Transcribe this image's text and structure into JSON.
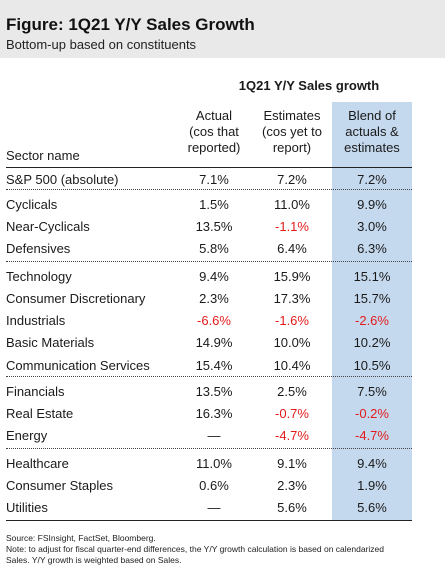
{
  "figure": {
    "title": "Figure: 1Q21 Y/Y Sales Growth",
    "subtitle": "Bottom-up based on constituents"
  },
  "table": {
    "group_header": "1Q21 Y/Y Sales growth",
    "name_header": "Sector name",
    "column_headers": [
      [
        "Actual",
        "(cos that",
        "reported)"
      ],
      [
        "Estimates",
        "(cos yet to",
        "report)"
      ],
      [
        "Blend of",
        "actuals &",
        "estimates"
      ]
    ],
    "rows": [
      {
        "name": "S&P 500 (absolute)",
        "actual": "7.1%",
        "estimates": "7.2%",
        "blend": "7.2%"
      },
      {
        "name": "Cyclicals",
        "actual": "1.5%",
        "estimates": "11.0%",
        "blend": "9.9%"
      },
      {
        "name": "Near-Cyclicals",
        "actual": "13.5%",
        "estimates": "-1.1%",
        "blend": "3.0%"
      },
      {
        "name": "Defensives",
        "actual": "5.8%",
        "estimates": "6.4%",
        "blend": "6.3%"
      },
      {
        "name": "Technology",
        "actual": "9.4%",
        "estimates": "15.9%",
        "blend": "15.1%"
      },
      {
        "name": "Consumer Discretionary",
        "actual": "2.3%",
        "estimates": "17.3%",
        "blend": "15.7%"
      },
      {
        "name": "Industrials",
        "actual": "-6.6%",
        "estimates": "-1.6%",
        "blend": "-2.6%"
      },
      {
        "name": "Basic Materials",
        "actual": "14.9%",
        "estimates": "10.0%",
        "blend": "10.2%"
      },
      {
        "name": "Communication Services",
        "actual": "15.4%",
        "estimates": "10.4%",
        "blend": "10.5%"
      },
      {
        "name": "Financials",
        "actual": "13.5%",
        "estimates": "2.5%",
        "blend": "7.5%"
      },
      {
        "name": "Real Estate",
        "actual": "16.3%",
        "estimates": "-0.7%",
        "blend": "-0.2%"
      },
      {
        "name": "Energy",
        "actual": "—",
        "estimates": "-4.7%",
        "blend": "-4.7%"
      },
      {
        "name": "Healthcare",
        "actual": "11.0%",
        "estimates": "9.1%",
        "blend": "9.4%"
      },
      {
        "name": "Consumer Staples",
        "actual": "0.6%",
        "estimates": "2.3%",
        "blend": "1.9%"
      },
      {
        "name": "Utilities",
        "actual": "—",
        "estimates": "5.6%",
        "blend": "5.6%"
      }
    ]
  },
  "source": {
    "line1": "Source: FSInsight, FactSet, Bloomberg.",
    "line2": "Note: to adjust for fiscal quarter-end differences, the Y/Y growth calculation is based on calendarized",
    "line3": "Sales. Y/Y growth is weighted based on Sales."
  },
  "colors": {
    "negative": "#e31b1b",
    "blend_column": "#c5d9ee",
    "title_background": "#e9e9e9"
  }
}
